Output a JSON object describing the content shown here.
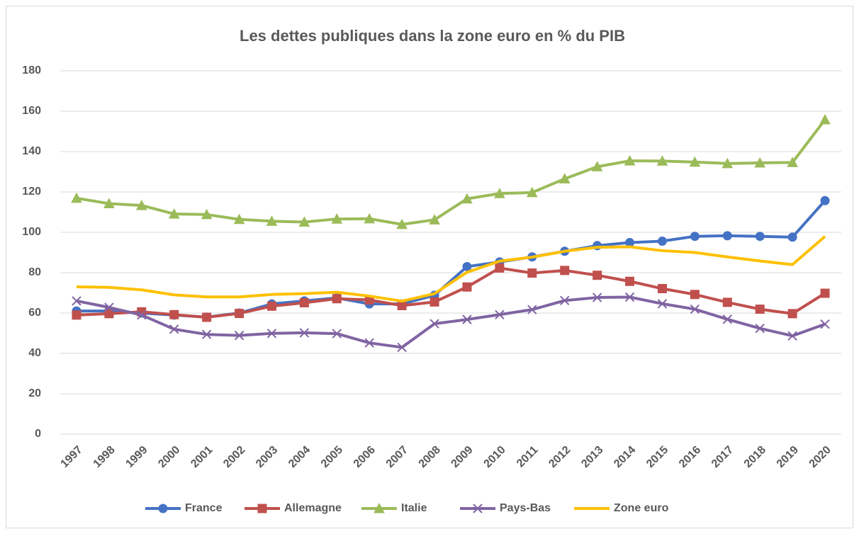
{
  "chart_data": {
    "type": "line",
    "title": "Les dettes publiques dans la zone euro en % du PIB",
    "categories": [
      "1997",
      "1998",
      "1999",
      "2000",
      "2001",
      "2002",
      "2003",
      "2004",
      "2005",
      "2006",
      "2007",
      "2008",
      "2009",
      "2010",
      "2011",
      "2012",
      "2013",
      "2014",
      "2015",
      "2016",
      "2017",
      "2018",
      "2019",
      "2020"
    ],
    "series": [
      {
        "name": "France",
        "color": "#4472c4",
        "marker": "circle",
        "values": [
          61,
          61,
          60,
          59,
          58,
          60,
          64.5,
          66,
          67.5,
          64.5,
          64.5,
          68.8,
          83,
          85.3,
          87.8,
          90.6,
          93.4,
          94.9,
          95.6,
          98,
          98.3,
          98,
          97.6,
          115.7
        ]
      },
      {
        "name": "Allemagne",
        "color": "#c0504d",
        "marker": "square",
        "values": [
          59,
          59.7,
          60.6,
          59.2,
          57.9,
          59.8,
          63.4,
          65.1,
          67.1,
          66.5,
          63.7,
          65.5,
          72.9,
          82.3,
          79.8,
          81.1,
          78.7,
          75.7,
          72.1,
          69.2,
          65.3,
          61.9,
          59.7,
          69.8
        ]
      },
      {
        "name": "Italie",
        "color": "#9bbb59",
        "marker": "triangle",
        "values": [
          116.9,
          114.2,
          113.3,
          109.1,
          108.8,
          106.4,
          105.5,
          105.1,
          106.6,
          106.7,
          103.9,
          106.2,
          116.6,
          119.2,
          119.7,
          126.5,
          132.5,
          135.4,
          135.3,
          134.8,
          134.1,
          134.4,
          134.6,
          155.8
        ]
      },
      {
        "name": "Pays-Bas",
        "color": "#8064a2",
        "marker": "x",
        "values": [
          66,
          62.8,
          59,
          52,
          49.4,
          48.9,
          49.9,
          50.2,
          49.8,
          45.2,
          43,
          54.7,
          56.8,
          59.2,
          61.7,
          66.2,
          67.7,
          67.9,
          64.6,
          61.9,
          56.9,
          52.4,
          48.7,
          54.5
        ]
      },
      {
        "name": "Zone euro",
        "color": "#ffc000",
        "marker": "none",
        "values": [
          73,
          72.7,
          71.5,
          69,
          68,
          68,
          69.2,
          69.6,
          70.3,
          68.4,
          65.9,
          69.6,
          80.2,
          85.7,
          87.7,
          90.6,
          92.6,
          92.8,
          90.9,
          90,
          87.8,
          85.8,
          84,
          98
        ]
      }
    ],
    "ylim": [
      0,
      180
    ],
    "yticks": [
      0,
      20,
      40,
      60,
      80,
      100,
      120,
      140,
      160,
      180
    ],
    "grid": true,
    "legend": "bottom"
  }
}
